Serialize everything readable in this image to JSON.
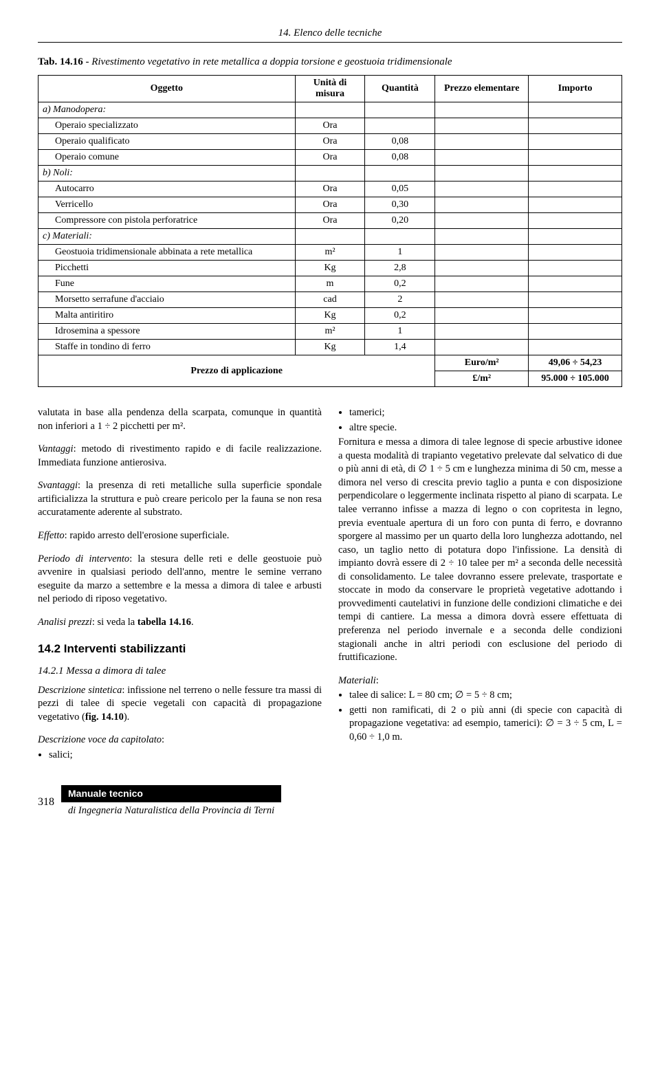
{
  "header": {
    "chapter": "14. Elenco delle tecniche"
  },
  "table": {
    "caption_prefix": "Tab. 14.16",
    "caption_rest": " - Rivestimento vegetativo in rete metallica a doppia torsione e geostuoia tridimensionale",
    "headers": {
      "oggetto": "Oggetto",
      "unita": "Unità di misura",
      "quantita": "Quantità",
      "prezzo": "Prezzo elementare",
      "importo": "Importo"
    },
    "sections": [
      {
        "label": "a) Manodopera:",
        "items": [
          {
            "name": "Operaio specializzato",
            "unit": "Ora",
            "qty": ""
          },
          {
            "name": "Operaio qualificato",
            "unit": "Ora",
            "qty": "0,08"
          },
          {
            "name": "Operaio comune",
            "unit": "Ora",
            "qty": "0,08"
          }
        ]
      },
      {
        "label": "b) Noli:",
        "items": [
          {
            "name": "Autocarro",
            "unit": "Ora",
            "qty": "0,05"
          },
          {
            "name": "Verricello",
            "unit": "Ora",
            "qty": "0,30"
          },
          {
            "name": "Compressore con pistola perforatrice",
            "unit": "Ora",
            "qty": "0,20"
          }
        ]
      },
      {
        "label": "c) Materiali:",
        "items": [
          {
            "name": "Geostuoia tridimensionale abbinata a rete metallica",
            "unit": "m²",
            "qty": "1"
          },
          {
            "name": "Picchetti",
            "unit": "Kg",
            "qty": "2,8"
          },
          {
            "name": "Fune",
            "unit": "m",
            "qty": "0,2"
          },
          {
            "name": "Morsetto serrafune d'acciaio",
            "unit": "cad",
            "qty": "2"
          },
          {
            "name": "Malta antiritiro",
            "unit": "Kg",
            "qty": "0,2"
          },
          {
            "name": "Idrosemina a spessore",
            "unit": "m²",
            "qty": "1"
          },
          {
            "name": "Staffe in tondino di ferro",
            "unit": "Kg",
            "qty": "1,4"
          }
        ]
      }
    ],
    "footer": {
      "label": "Prezzo di applicazione",
      "rows": [
        {
          "unit": "Euro/m²",
          "value": "49,06 ÷ 54,23"
        },
        {
          "unit": "£/m²",
          "value": "95.000 ÷ 105.000"
        }
      ]
    }
  },
  "body": {
    "left": {
      "p1": "valutata in base alla pendenza della scarpata, comunque in quantità non inferiori a 1 ÷ 2 picchetti per m².",
      "p2_label": "Vantaggi",
      "p2_text": ": metodo di rivestimento rapido e di facile realizzazione. Immediata funzione antierosiva.",
      "p3_label": "Svantaggi",
      "p3_text": ": la presenza di reti metalliche sulla superficie spondale artificializza la struttura e può creare pericolo per la fauna se non resa accuratamente aderente al substrato.",
      "p4_label": "Effetto",
      "p4_text": ": rapido arresto dell'erosione superficiale.",
      "p5_label": "Periodo di intervento",
      "p5_text": ": la stesura delle reti e delle geostuoie può avvenire in qualsiasi periodo dell'anno, mentre le semine verrano eseguite da marzo a settembre e la messa a dimora di talee e arbusti nel periodo di riposo vegetativo.",
      "p6_label": "Analisi prezzi",
      "p6_text": ": si veda la ",
      "p6_bold": "tabella 14.16",
      "section_title": "14.2 Interventi stabilizzanti",
      "subsection_title": "14.2.1 Messa a dimora di talee",
      "p7_label": "Descrizione sintetica",
      "p7_text": ": infissione nel terreno o nelle fessure tra massi di pezzi di talee di specie vegetali con capacità di propagazione vegetativo (",
      "p7_bold": "fig. 14.10",
      "p7_end": ").",
      "p8_label": "Descrizione voce da capitolato",
      "p8_text": ":",
      "bullets": [
        "salici;"
      ]
    },
    "right": {
      "bullets_top": [
        "tamerici;",
        "altre specie."
      ],
      "p1": "Fornitura e messa a dimora di talee legnose di specie arbustive idonee a questa modalità di trapianto vegetativo prelevate dal selvatico di due o più anni di età, di ∅ 1 ÷ 5 cm e lunghezza minima di 50 cm, messe a dimora nel verso di crescita previo taglio a punta e con disposizione perpendicolare o leggermente inclinata rispetto al piano di scarpata. Le talee verranno infisse a mazza di legno o con copritesta in legno, previa eventuale apertura di un foro con punta di ferro, e dovranno sporgere al massimo per un quarto della loro lunghezza adottando, nel caso, un taglio netto di potatura dopo l'infissione. La densità di impianto dovrà essere di 2 ÷ 10 talee per m² a seconda delle necessità di consolidamento. Le talee dovranno essere prelevate, trasportate e stoccate in modo da conservare le proprietà vegetative adottando i provvedimenti cautelativi in funzione delle condizioni climatiche e dei tempi di cantiere. La messa a dimora dovrà essere effettuata di preferenza nel periodo invernale e a seconda delle condizioni stagionali anche in altri periodi con esclusione del periodo di fruttificazione.",
      "p2_label": "Materiali",
      "p2_text": ":",
      "bullets_mat": [
        "talee di salice: L = 80 cm; ∅ = 5 ÷ 8 cm;",
        "getti non ramificati, di 2 o più anni (di specie con capacità di propagazione vegetativa: ad esempio, tamerici): ∅ = 3 ÷ 5 cm, L = 0,60 ÷ 1,0 m."
      ]
    }
  },
  "footer": {
    "page": "318",
    "box": "Manuale tecnico",
    "sub": "di Ingegneria Naturalistica della Provincia di Terni"
  }
}
